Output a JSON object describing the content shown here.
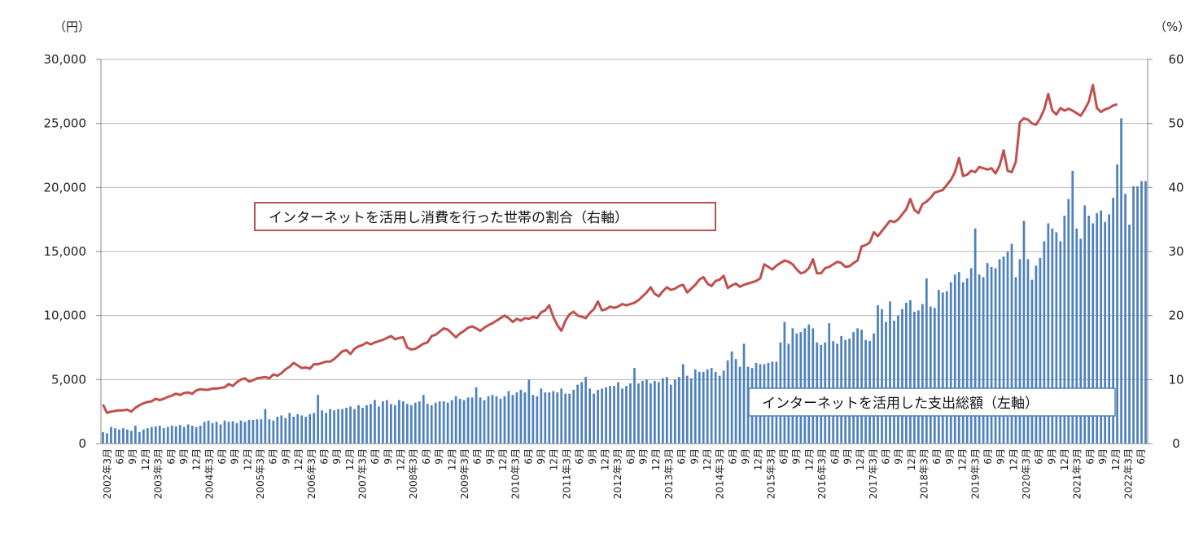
{
  "chart_data": {
    "type": "bar+line",
    "y_left": {
      "unit": "（円）",
      "ylim": [
        0,
        30000
      ],
      "ticks": [
        "0",
        "5,000",
        "10,000",
        "15,000",
        "20,000",
        "25,000",
        "30,000"
      ]
    },
    "y_right": {
      "unit": "（%）",
      "ylim": [
        0,
        60
      ],
      "ticks": [
        "0",
        "10",
        "20",
        "30",
        "40",
        "50",
        "60"
      ]
    },
    "grid": true,
    "x_labels": [
      "2002年3月",
      "6月",
      "9月",
      "12月",
      "2003年3月",
      "6月",
      "9月",
      "12月",
      "2004年3月",
      "6月",
      "9月",
      "12月",
      "2005年3月",
      "6月",
      "9月",
      "12月",
      "2006年3月",
      "6月",
      "9月",
      "12月",
      "2007年3月",
      "6月",
      "9月",
      "12月",
      "2008年3月",
      "6月",
      "9月",
      "12月",
      "2009年3月",
      "6月",
      "9月",
      "12月",
      "2010年3月",
      "6月",
      "9月",
      "12月",
      "2011年3月",
      "6月",
      "9月",
      "12月",
      "2012年3月",
      "6月",
      "9月",
      "12月",
      "2013年3月",
      "6月",
      "9月",
      "12月",
      "2014年3月",
      "6月",
      "9月",
      "12月",
      "2015年3月",
      "6月",
      "9月",
      "12月",
      "2016年3月",
      "6月",
      "9月",
      "12月",
      "2017年3月",
      "6月",
      "9月",
      "12月",
      "2018年3月",
      "6月",
      "9月",
      "12月",
      "2019年3月",
      "6月",
      "9月",
      "12月",
      "2020年3月",
      "6月",
      "9月",
      "12月",
      "2021年3月",
      "6月",
      "9月",
      "12月",
      "2022年3月",
      "6月"
    ],
    "series": [
      {
        "name": "インターネットを活用した支出総額（左軸）",
        "type": "bar",
        "axis": "left",
        "color": "#4f81bd",
        "values": [
          900,
          800,
          1300,
          1200,
          1100,
          1200,
          1100,
          1000,
          1400,
          900,
          1100,
          1200,
          1300,
          1350,
          1400,
          1200,
          1300,
          1400,
          1350,
          1450,
          1300,
          1500,
          1400,
          1300,
          1400,
          1700,
          1800,
          1600,
          1700,
          1500,
          1800,
          1700,
          1750,
          1600,
          1800,
          1700,
          1850,
          1850,
          1900,
          1900,
          2700,
          1900,
          1800,
          2100,
          2200,
          2000,
          2400,
          2100,
          2300,
          2200,
          2100,
          2300,
          2400,
          3800,
          2600,
          2400,
          2700,
          2600,
          2700,
          2700,
          2800,
          2900,
          2700,
          3000,
          2800,
          3000,
          3100,
          3400,
          2900,
          3300,
          3400,
          3100,
          3000,
          3400,
          3300,
          3100,
          3000,
          3200,
          3300,
          3800,
          3100,
          3000,
          3200,
          3300,
          3300,
          3200,
          3400,
          3700,
          3500,
          3400,
          3600,
          3600,
          4400,
          3600,
          3400,
          3700,
          3800,
          3700,
          3500,
          3700,
          4100,
          3800,
          4000,
          4200,
          4000,
          5000,
          3800,
          3700,
          4300,
          4000,
          4000,
          4100,
          4000,
          4300,
          3900,
          3900,
          4200,
          4600,
          4800,
          5200,
          4300,
          3900,
          4200,
          4300,
          4400,
          4500,
          4500,
          4800,
          4300,
          4500,
          4700,
          5900,
          4700,
          4900,
          5000,
          4700,
          4900,
          4800,
          5100,
          5200,
          4600,
          5000,
          5200,
          6200,
          5300,
          5100,
          5800,
          5600,
          5600,
          5800,
          5900,
          5600,
          5300,
          5700,
          6500,
          7200,
          6600,
          6000,
          7800,
          6000,
          5900,
          6300,
          6200,
          6200,
          6300,
          6400,
          6400,
          7900,
          9500,
          7800,
          9000,
          8600,
          8700,
          9000,
          9300,
          9000,
          7900,
          7700,
          7900,
          9400,
          8000,
          7800,
          8400,
          8100,
          8200,
          8700,
          9000,
          8900,
          8100,
          8000,
          8600,
          10800,
          10500,
          9500,
          11100,
          9600,
          10000,
          10500,
          11000,
          11200,
          10300,
          10400,
          10900,
          12900,
          10700,
          10600,
          12000,
          11800,
          11900,
          12600,
          13200,
          13400,
          12600,
          12900,
          13700,
          16800,
          13200,
          13000,
          14100,
          13800,
          13700,
          14400,
          14600,
          15000,
          15600,
          13000,
          14400,
          17400,
          14400,
          12800,
          13900,
          14500,
          15800,
          17200,
          16800,
          16500,
          15800,
          17800,
          19100,
          21300,
          16800,
          16000,
          18600,
          17800,
          17200,
          18000,
          18200,
          17300,
          17900,
          19200,
          21800,
          25400,
          19500,
          17100,
          20100,
          20100,
          20500,
          20500
        ]
      },
      {
        "name": "インターネットを活用し消費を行った世帯の割合（右軸）",
        "type": "line",
        "axis": "right",
        "color": "#c0504d",
        "values": [
          6.1,
          4.8,
          5.0,
          5.1,
          5.2,
          5.2,
          5.3,
          5.0,
          5.6,
          6.0,
          6.3,
          6.5,
          6.6,
          7.0,
          6.8,
          7.0,
          7.3,
          7.5,
          7.8,
          7.6,
          7.9,
          8.0,
          7.8,
          8.3,
          8.5,
          8.4,
          8.4,
          8.6,
          8.6,
          8.7,
          8.8,
          9.3,
          9.0,
          9.6,
          10.0,
          10.2,
          9.7,
          9.9,
          10.2,
          10.3,
          10.4,
          10.2,
          10.8,
          10.6,
          11.0,
          11.6,
          12.0,
          12.6,
          12.2,
          11.8,
          11.9,
          11.7,
          12.4,
          12.4,
          12.6,
          12.8,
          12.8,
          13.2,
          13.8,
          14.4,
          14.6,
          14.0,
          14.8,
          15.2,
          15.4,
          15.8,
          15.5,
          15.8,
          16.0,
          16.2,
          16.5,
          16.8,
          16.3,
          16.5,
          16.6,
          15.0,
          14.7,
          14.8,
          15.2,
          15.6,
          15.8,
          16.8,
          17.0,
          17.5,
          18.0,
          17.8,
          17.2,
          16.6,
          17.2,
          17.6,
          18.1,
          18.3,
          18.0,
          17.6,
          18.1,
          18.5,
          18.8,
          19.2,
          19.6,
          20.0,
          19.6,
          19.0,
          19.5,
          19.2,
          19.6,
          19.5,
          19.8,
          19.6,
          20.5,
          20.8,
          21.6,
          19.8,
          18.5,
          17.6,
          19.2,
          20.2,
          20.6,
          20.0,
          19.8,
          19.6,
          20.4,
          21.0,
          22.2,
          20.8,
          21.0,
          21.4,
          21.2,
          21.4,
          21.8,
          21.6,
          21.8,
          22.0,
          22.4,
          23.0,
          23.6,
          24.4,
          23.4,
          23.0,
          23.8,
          24.4,
          24.0,
          24.2,
          24.6,
          24.8,
          23.6,
          24.2,
          24.8,
          25.6,
          26.0,
          25.0,
          24.6,
          25.4,
          25.6,
          26.2,
          24.3,
          24.7,
          25.0,
          24.5,
          24.8,
          25.0,
          25.2,
          25.4,
          25.8,
          28.0,
          27.6,
          27.2,
          27.8,
          28.2,
          28.6,
          28.4,
          28.0,
          27.2,
          26.6,
          26.8,
          27.4,
          28.8,
          26.6,
          26.6,
          27.4,
          27.6,
          28.0,
          28.4,
          28.2,
          27.6,
          27.7,
          28.2,
          28.6,
          30.8,
          31.0,
          31.4,
          33.0,
          32.4,
          33.2,
          34.0,
          34.8,
          34.6,
          35.0,
          35.8,
          36.6,
          38.2,
          36.5,
          36.0,
          37.4,
          37.8,
          38.4,
          39.2,
          39.4,
          39.6,
          40.4,
          41.2,
          42.4,
          44.6,
          41.8,
          42.0,
          42.6,
          42.4,
          43.2,
          43.0,
          42.8,
          43.0,
          42.2,
          43.4,
          45.8,
          42.6,
          42.4,
          44.0,
          50.2,
          50.8,
          50.6,
          50.0,
          49.8,
          50.8,
          52.2,
          54.6,
          52.0,
          51.4,
          52.4,
          52.0,
          52.3,
          52.0,
          51.6,
          51.2,
          52.2,
          53.4,
          56.0,
          52.4,
          51.8,
          52.2,
          52.4,
          52.8,
          53.0
        ]
      }
    ],
    "legend": {
      "line_label": "インターネットを活用し消費を行った世帯の割合（右軸）",
      "bar_label": "インターネットを活用した支出総額（左軸）"
    }
  }
}
